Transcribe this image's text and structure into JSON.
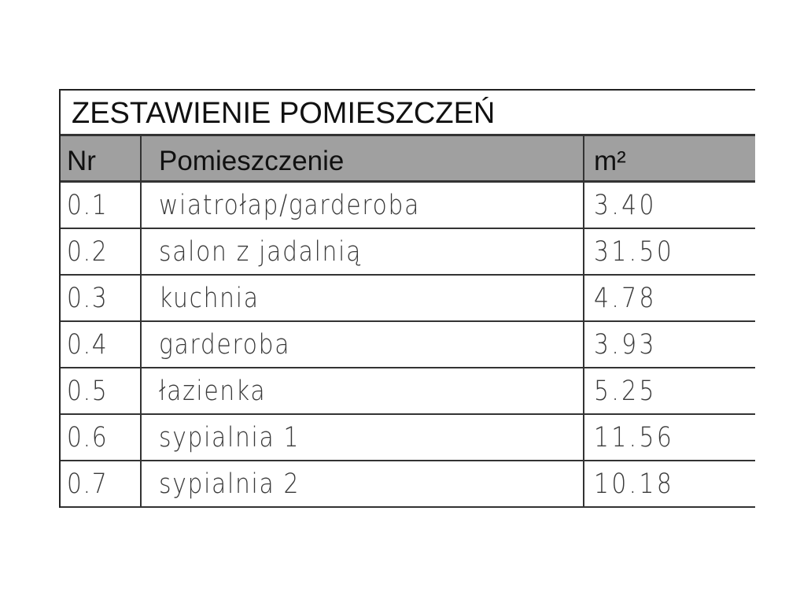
{
  "table": {
    "title": "ZESTAWIENIE POMIESZCZEŃ",
    "header_fill": "#a0a0a0",
    "columns": [
      "Nr",
      "Pomieszczenie",
      "m²"
    ],
    "rows": [
      {
        "nr": "0.1",
        "name": "wiatrołap/garderoba",
        "area": "3.40"
      },
      {
        "nr": "0.2",
        "name": "salon z jadalnią",
        "area": "31.50"
      },
      {
        "nr": "0.3",
        "name": "kuchnia",
        "area": "4.78"
      },
      {
        "nr": "0.4",
        "name": "garderoba",
        "area": "3.93"
      },
      {
        "nr": "0.5",
        "name": "łazienka",
        "area": "5.25"
      },
      {
        "nr": "0.6",
        "name": "sypialnia 1",
        "area": "11.56"
      },
      {
        "nr": "0.7",
        "name": "sypialnia 2",
        "area": "10.18"
      }
    ]
  }
}
